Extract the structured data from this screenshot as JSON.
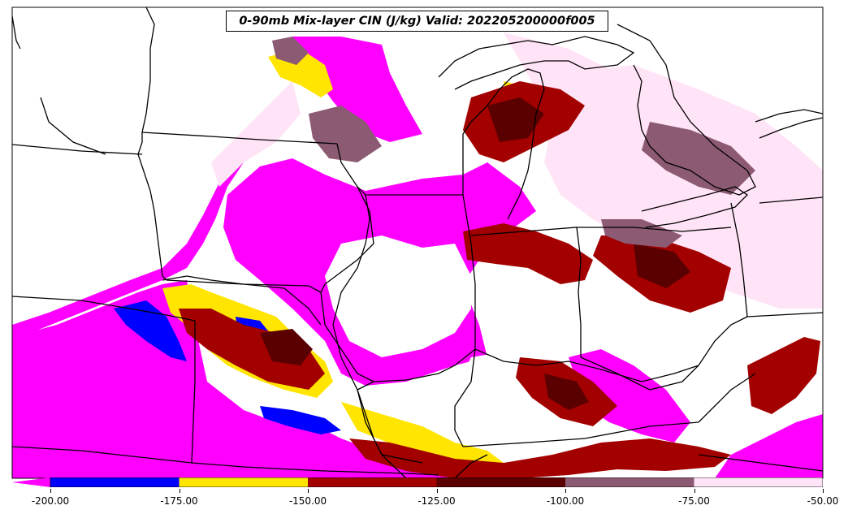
{
  "title": "0-90mb Mix-layer CIN (J/kg) Valid: 202205200000f005",
  "colorbar": {
    "bins": [
      {
        "from": -200,
        "to": -175,
        "color": "#0000ff"
      },
      {
        "from": -175,
        "to": -150,
        "color": "#ffe500"
      },
      {
        "from": -150,
        "to": -125,
        "color": "#a30000"
      },
      {
        "from": -125,
        "to": -100,
        "color": "#5b0000"
      },
      {
        "from": -100,
        "to": -75,
        "color": "#8c5a73"
      },
      {
        "from": -75,
        "to": -50,
        "color": "#ffe3f6"
      }
    ],
    "under_color": "#ff00ff",
    "tick_labels": [
      "-200.00",
      "-175.00",
      "-150.00",
      "-125.00",
      "-100.00",
      "-75.00",
      "-50.00"
    ]
  },
  "colors": {
    "magenta": "#ff00ff",
    "blue": "#0000ff",
    "yellow": "#ffe500",
    "red": "#a30000",
    "darkred": "#5b0000",
    "mauve": "#8c5a73",
    "lightpink": "#ffe3f6",
    "lavender": "#f6d7ee",
    "border": "#000000"
  }
}
